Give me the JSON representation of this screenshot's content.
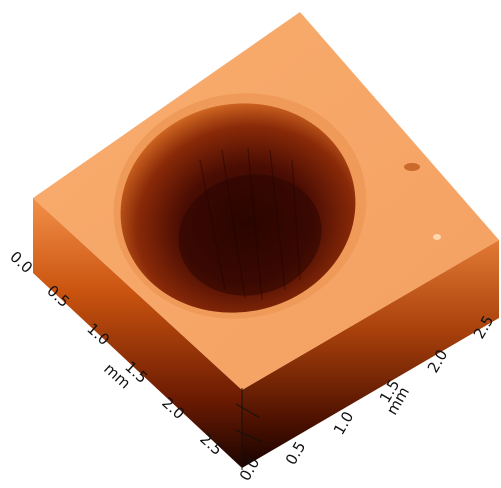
{
  "left_axis": {
    "unit": "mm",
    "ticks": [
      "0.0",
      "0.5",
      "1.0",
      "1.5",
      "2.0",
      "2.5"
    ]
  },
  "right_axis": {
    "unit": "mm",
    "ticks": [
      "0.0",
      "0.5",
      "1.0",
      "1.5",
      "2.0",
      "2.5"
    ]
  },
  "colors": {
    "top_surface": "#f7a868",
    "crater_deep": "#3a0802",
    "crater_rim": "#e07b3a",
    "side_left": "#e06a1e",
    "side_right": "#b3440c",
    "side_base": "#200400"
  }
}
